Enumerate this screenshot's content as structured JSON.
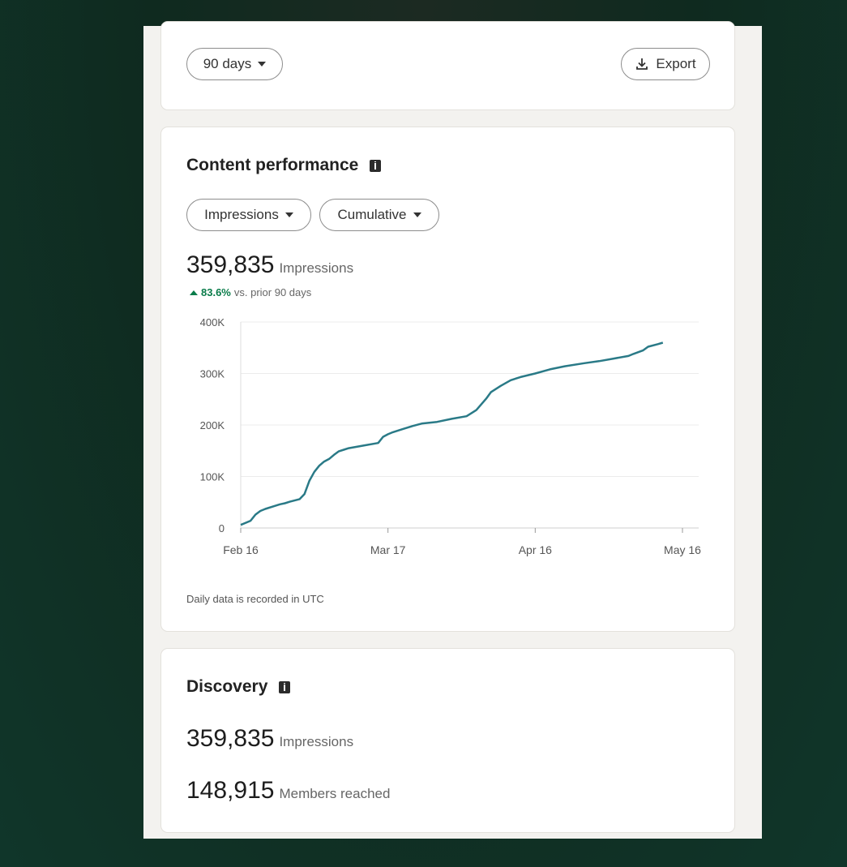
{
  "filters": {
    "range_label": "90 days",
    "export_label": "Export"
  },
  "content_performance": {
    "title": "Content performance",
    "metric_dropdown": "Impressions",
    "mode_dropdown": "Cumulative",
    "total": "359,835",
    "total_label": "Impressions",
    "delta_pct": "83.6%",
    "delta_text": "vs. prior 90 days",
    "footnote": "Daily data is recorded in UTC"
  },
  "chart_data": {
    "type": "line",
    "title": "",
    "xlabel": "",
    "ylabel": "",
    "ylim": [
      0,
      400000
    ],
    "yticks": [
      0,
      100000,
      200000,
      300000,
      400000
    ],
    "ytick_labels": [
      "0",
      "100K",
      "200K",
      "300K",
      "400K"
    ],
    "xticks": [
      "Feb 16",
      "Mar 17",
      "Apr 16",
      "May 16"
    ],
    "xtick_days": [
      0,
      30,
      60,
      90
    ],
    "grid": true,
    "color": "#2a7a87",
    "series": [
      {
        "x": [
          0,
          2,
          3,
          4,
          5,
          7,
          8,
          9,
          10,
          12,
          13,
          14,
          15,
          16,
          17,
          18,
          19,
          20,
          21,
          22,
          25,
          28,
          29,
          30,
          31,
          33,
          35,
          37,
          40,
          43,
          46,
          48,
          50,
          51,
          53,
          55,
          57,
          60,
          63,
          66,
          70,
          73,
          76,
          79,
          80,
          82,
          83,
          85,
          86
        ],
        "y": [
          6000,
          14000,
          26000,
          33000,
          37000,
          43000,
          46000,
          48000,
          51000,
          56000,
          66000,
          92000,
          109000,
          121000,
          129000,
          134000,
          142000,
          149000,
          152000,
          155000,
          160000,
          165000,
          177000,
          182000,
          186000,
          192000,
          198000,
          203000,
          206000,
          212000,
          217000,
          229000,
          251000,
          264000,
          276000,
          287000,
          293000,
          300000,
          308000,
          314000,
          320000,
          324000,
          329000,
          334000,
          338000,
          345000,
          352000,
          357000,
          359835
        ]
      }
    ]
  },
  "discovery": {
    "title": "Discovery",
    "impressions": "359,835",
    "impressions_label": "Impressions",
    "members": "148,915",
    "members_label": "Members reached"
  }
}
